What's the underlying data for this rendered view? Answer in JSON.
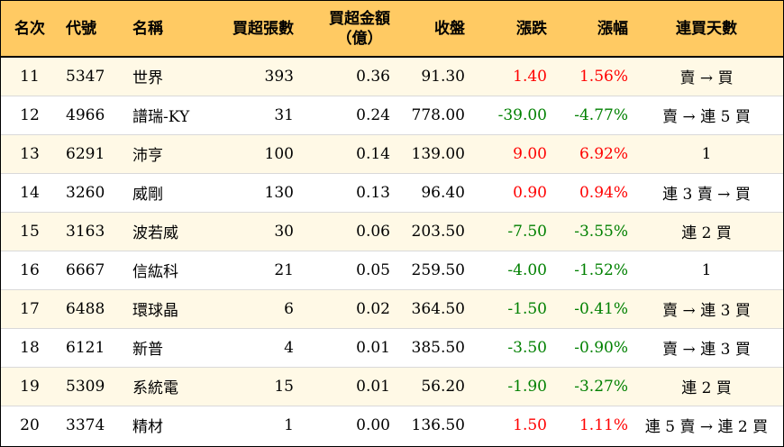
{
  "columns": {
    "rank": "名次",
    "code": "代號",
    "name": "名稱",
    "net_buy_lots": "買超張數",
    "net_buy_amount_line1": "買超金額",
    "net_buy_amount_line2": "（億）",
    "close": "收盤",
    "change": "漲跌",
    "change_pct": "漲幅",
    "streak": "連買天數"
  },
  "colors": {
    "header_bg": "#ffca63",
    "stripe_bg": "#fff9e6",
    "up": "#ff0000",
    "down": "#008000"
  },
  "rows": [
    {
      "rank": "11",
      "code": "5347",
      "name": "世界",
      "lots": "393",
      "amount": "0.36",
      "close": "91.30",
      "change": "1.40",
      "pct": "1.56%",
      "streak": "賣 → 買",
      "dir": "up"
    },
    {
      "rank": "12",
      "code": "4966",
      "name": "譜瑞-KY",
      "lots": "31",
      "amount": "0.24",
      "close": "778.00",
      "change": "-39.00",
      "pct": "-4.77%",
      "streak": "賣 → 連 5 買",
      "dir": "down"
    },
    {
      "rank": "13",
      "code": "6291",
      "name": "沛亨",
      "lots": "100",
      "amount": "0.14",
      "close": "139.00",
      "change": "9.00",
      "pct": "6.92%",
      "streak": "1",
      "dir": "up"
    },
    {
      "rank": "14",
      "code": "3260",
      "name": "威剛",
      "lots": "130",
      "amount": "0.13",
      "close": "96.40",
      "change": "0.90",
      "pct": "0.94%",
      "streak": "連 3 賣 → 買",
      "dir": "up"
    },
    {
      "rank": "15",
      "code": "3163",
      "name": "波若威",
      "lots": "30",
      "amount": "0.06",
      "close": "203.50",
      "change": "-7.50",
      "pct": "-3.55%",
      "streak": "連 2 買",
      "dir": "down"
    },
    {
      "rank": "16",
      "code": "6667",
      "name": "信紘科",
      "lots": "21",
      "amount": "0.05",
      "close": "259.50",
      "change": "-4.00",
      "pct": "-1.52%",
      "streak": "1",
      "dir": "down"
    },
    {
      "rank": "17",
      "code": "6488",
      "name": "環球晶",
      "lots": "6",
      "amount": "0.02",
      "close": "364.50",
      "change": "-1.50",
      "pct": "-0.41%",
      "streak": "賣 → 連 3 買",
      "dir": "down"
    },
    {
      "rank": "18",
      "code": "6121",
      "name": "新普",
      "lots": "4",
      "amount": "0.01",
      "close": "385.50",
      "change": "-3.50",
      "pct": "-0.90%",
      "streak": "賣 → 連 3 買",
      "dir": "down"
    },
    {
      "rank": "19",
      "code": "5309",
      "name": "系統電",
      "lots": "15",
      "amount": "0.01",
      "close": "56.20",
      "change": "-1.90",
      "pct": "-3.27%",
      "streak": "連 2 買",
      "dir": "down"
    },
    {
      "rank": "20",
      "code": "3374",
      "name": "精材",
      "lots": "1",
      "amount": "0.00",
      "close": "136.50",
      "change": "1.50",
      "pct": "1.11%",
      "streak": "連 5 賣 → 連 2 買",
      "dir": "up"
    }
  ]
}
